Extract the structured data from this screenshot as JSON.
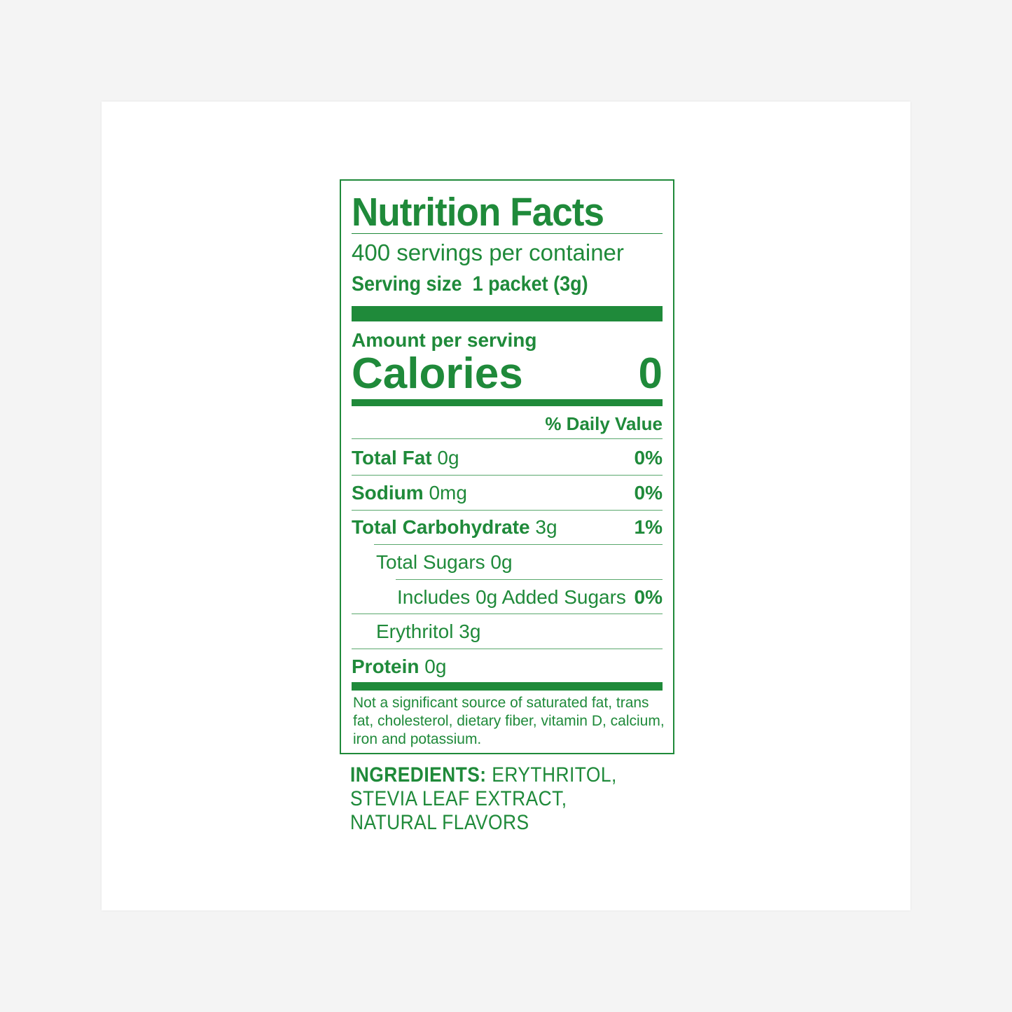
{
  "label": {
    "title": "Nutrition Facts",
    "servings_per_container": "400 servings per container",
    "serving_size_label": "Serving size",
    "serving_size_value": "1 packet (3g)",
    "amount_per_serving": "Amount per serving",
    "calories_label": "Calories",
    "calories_value": "0",
    "daily_value_header": "% Daily Value",
    "rows": [
      {
        "name": "Total Fat",
        "amount": "0g",
        "dv": "0%"
      },
      {
        "name": "Sodium",
        "amount": "0mg",
        "dv": "0%"
      },
      {
        "name": "Total Carbohydrate",
        "amount": "3g",
        "dv": "1%"
      },
      {
        "name": "",
        "amount": "Total Sugars 0g",
        "dv": ""
      },
      {
        "name": "",
        "amount": "Includes 0g Added Sugars",
        "dv": "0%"
      },
      {
        "name": "",
        "amount": "Erythritol 3g",
        "dv": ""
      },
      {
        "name": "Protein",
        "amount": "0g",
        "dv": ""
      }
    ],
    "footnote": "Not a significant source of saturated fat, trans fat, cholesterol, dietary fiber, vitamin D, calcium, iron and potassium."
  },
  "ingredients": {
    "heading": "INGREDIENTS:",
    "line1": "ERYTHRITOL,",
    "line2": "STEVIA LEAF EXTRACT,",
    "line3": "NATURAL FLAVORS"
  },
  "colors": {
    "ink": "#1f8a3a",
    "background": "#ffffff"
  }
}
